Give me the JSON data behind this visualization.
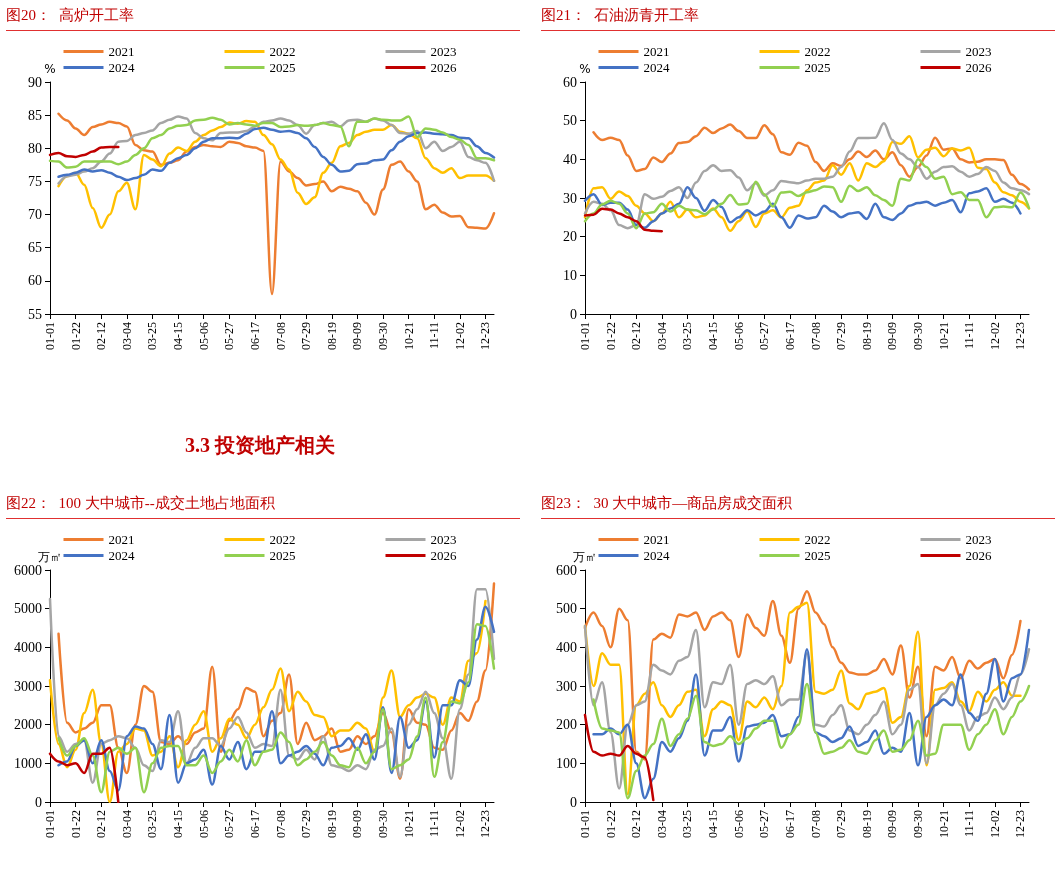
{
  "chart_data": [
    {
      "type": "line",
      "title": "图20：  高炉开工率",
      "ylabel": "%",
      "legend": "top",
      "marker": "none",
      "categories": [
        "01-01",
        null,
        null,
        "01-22",
        null,
        null,
        "02-12",
        null,
        null,
        "03-04",
        null,
        null,
        "03-25",
        null,
        null,
        "04-15",
        null,
        null,
        "05-06",
        null,
        null,
        "05-27",
        null,
        null,
        "06-17",
        null,
        null,
        "07-08",
        null,
        null,
        "07-29",
        null,
        null,
        "08-19",
        null,
        null,
        "09-09",
        null,
        null,
        "09-30",
        null,
        null,
        "10-21",
        null,
        null,
        "11-11",
        null,
        null,
        "12-02",
        null,
        null,
        "12-23",
        null
      ],
      "ylim": [
        55,
        90
      ],
      "yticks": [
        55,
        60,
        65,
        70,
        75,
        80,
        85,
        90
      ],
      "series": [
        {
          "name": "2021",
          "color": "#ed7d31",
          "values": [
            null,
            85.2,
            84.2,
            83,
            82,
            83.2,
            83.6,
            84,
            83.8,
            83.3,
            80.5,
            79.7,
            79.5,
            77.5,
            77.8,
            78.2,
            79.5,
            80.2,
            80.5,
            80.3,
            80.2,
            81,
            80.8,
            80.3,
            80.1,
            79.6,
            58,
            78,
            76.5,
            75.5,
            74.4,
            74.6,
            75,
            73.5,
            74.2,
            73.9,
            73.5,
            71.8,
            70,
            73.8,
            77.5,
            78,
            76.5,
            75,
            70.8,
            71.5,
            70.3,
            69.7,
            69.8,
            68.1,
            68,
            67.9,
            70.2
          ]
        },
        {
          "name": "2022",
          "color": "#ffc000",
          "values": [
            null,
            74.3,
            75.8,
            76.3,
            74.5,
            71,
            68,
            70,
            73.5,
            74.8,
            70.8,
            79,
            78.3,
            77.3,
            79.2,
            80.1,
            79.6,
            81,
            82,
            82.7,
            83.2,
            83.9,
            83.7,
            84.1,
            84,
            82,
            80.6,
            78.3,
            76.8,
            73.3,
            71.6,
            72.6,
            76.3,
            77.8,
            80.3,
            80.8,
            82,
            82.5,
            82.8,
            82.8,
            83.5,
            82.5,
            82.2,
            81.5,
            78.5,
            77,
            76.3,
            77,
            75.5,
            75.9,
            75.9,
            75.9,
            75.1
          ]
        },
        {
          "name": "2023",
          "color": "#a5a5a5",
          "values": [
            null,
            74.7,
            75.8,
            76,
            76.5,
            77,
            78,
            79.2,
            81,
            81.1,
            82,
            82.3,
            82.7,
            83.8,
            84.3,
            84.8,
            84.5,
            82.3,
            81.5,
            81.2,
            82.3,
            82.4,
            82.4,
            82.6,
            83.3,
            84,
            84.2,
            84.5,
            84.2,
            83.5,
            82.2,
            83.5,
            83.8,
            84,
            83.3,
            84.2,
            84.3,
            84,
            84.5,
            84.2,
            83.5,
            82.3,
            82.2,
            82.6,
            80,
            81,
            79.6,
            80.2,
            81,
            78.7,
            78.2,
            77.8,
            75.1
          ]
        },
        {
          "name": "2024",
          "color": "#4472c4",
          "values": [
            null,
            75.7,
            76,
            76.3,
            76.8,
            76.5,
            76.7,
            76.3,
            75.7,
            75.2,
            75.5,
            76,
            76.8,
            76.6,
            77.8,
            78.5,
            79,
            80,
            81,
            81.5,
            81.5,
            81.6,
            81.5,
            82.2,
            82.9,
            83.1,
            82.8,
            82.5,
            82.6,
            82.3,
            81.5,
            80.2,
            78.7,
            77.5,
            76.5,
            76.6,
            77.6,
            77.7,
            78.2,
            78.3,
            79.7,
            81,
            81.8,
            82.3,
            82.4,
            82.2,
            82.1,
            82,
            81.6,
            81.5,
            80.3,
            79.3,
            78.6
          ]
        },
        {
          "name": "2025",
          "color": "#92d050",
          "values": [
            78.1,
            78,
            77.1,
            77.2,
            78,
            78,
            78,
            78,
            77.6,
            78,
            79,
            80,
            81.5,
            82,
            83,
            83.4,
            83.5,
            84.2,
            84.3,
            84.6,
            84.3,
            83.6,
            83.8,
            83.6,
            83.4,
            83.8,
            83.8,
            83.2,
            83.3,
            83.5,
            83.4,
            83.5,
            83.8,
            83.5,
            83.3,
            80.3,
            84,
            84,
            84.5,
            84.3,
            84.2,
            84.2,
            84.8,
            81.7,
            83,
            82.8,
            82.4,
            81.7,
            81.3,
            80.5,
            78.5,
            78.5,
            78.2
          ]
        },
        {
          "name": "2026",
          "color": "#c00000",
          "values": [
            79,
            79.3,
            78.8,
            78.7,
            79,
            79.5,
            80.1,
            80.2,
            80.2,
            null,
            null,
            null,
            null,
            null,
            null,
            null,
            null,
            null,
            null,
            null,
            null,
            null,
            null,
            null,
            null,
            null,
            null,
            null,
            null,
            null,
            null,
            null,
            null,
            null,
            null,
            null,
            null,
            null,
            null,
            null,
            null,
            null,
            null,
            null,
            null,
            null,
            null,
            null,
            null,
            null,
            null,
            null,
            null
          ]
        }
      ]
    },
    {
      "type": "line",
      "title": "图21：  石油沥青开工率",
      "ylabel": "%",
      "legend": "top",
      "marker": "none",
      "categories": [
        "01-01",
        null,
        null,
        "01-22",
        null,
        null,
        "02-12",
        null,
        null,
        "03-04",
        null,
        null,
        "03-25",
        null,
        null,
        "04-15",
        null,
        null,
        "05-06",
        null,
        null,
        "05-27",
        null,
        null,
        "06-17",
        null,
        null,
        "07-08",
        null,
        null,
        "07-29",
        null,
        null,
        "08-19",
        null,
        null,
        "09-09",
        null,
        null,
        "09-30",
        null,
        null,
        "10-21",
        null,
        null,
        "11-11",
        null,
        null,
        "12-02",
        null,
        null,
        "12-23",
        null
      ],
      "ylim": [
        0,
        60
      ],
      "yticks": [
        0,
        10,
        20,
        30,
        40,
        50,
        60
      ],
      "series": [
        {
          "name": "2021",
          "color": "#ed7d31",
          "values": [
            null,
            47,
            45,
            45.6,
            45,
            41,
            37,
            37.5,
            40.5,
            39.3,
            41.5,
            44.2,
            44.5,
            46,
            48.2,
            46.8,
            48,
            49,
            47.3,
            45.5,
            45.5,
            48.8,
            46.5,
            41.8,
            41.2,
            44.3,
            43.5,
            39.3,
            37,
            39,
            38.3,
            40,
            42,
            40.6,
            42.3,
            40,
            41.8,
            38.5,
            35.5,
            38,
            41,
            45.6,
            42.5,
            42.8,
            40,
            39.2,
            39.4,
            40,
            40,
            39.8,
            36,
            33.6,
            32.2
          ]
        },
        {
          "name": "2022",
          "color": "#ffc000",
          "values": [
            25,
            32.5,
            32.8,
            29.8,
            31.7,
            30.5,
            28,
            26,
            24,
            26,
            29,
            25,
            27,
            25,
            25.5,
            27.3,
            25,
            21.5,
            24,
            26.5,
            22.5,
            26,
            26.8,
            25,
            27.5,
            28,
            32,
            34,
            34.5,
            38.5,
            36,
            39,
            34.5,
            39,
            38,
            39.5,
            44.5,
            44,
            46,
            40.5,
            42.5,
            43,
            40.8,
            42.8,
            42.3,
            43,
            37.8,
            37.5,
            34,
            31.5,
            30.7,
            29,
            27.3
          ]
        },
        {
          "name": "2023",
          "color": "#a5a5a5",
          "values": [
            26,
            29,
            28.5,
            26.8,
            23,
            22.2,
            23,
            31,
            29.8,
            30.3,
            31.8,
            32.8,
            30,
            34,
            37,
            38.5,
            37,
            37.2,
            35.3,
            32,
            33.8,
            30.6,
            32,
            34.4,
            34.1,
            33.8,
            34.5,
            35,
            35,
            35.5,
            38,
            42,
            45.5,
            45.5,
            45.6,
            49.3,
            45,
            41.5,
            40,
            38,
            35,
            36.8,
            38,
            38.2,
            36.8,
            35.5,
            36.2,
            38,
            37,
            34,
            32.5,
            32,
            31
          ]
        },
        {
          "name": "2024",
          "color": "#4472c4",
          "values": [
            29.3,
            31,
            28.2,
            28.8,
            28.8,
            27,
            23,
            22.3,
            24,
            26,
            27.3,
            28.5,
            32.8,
            30,
            26.7,
            29.5,
            27.7,
            23.7,
            25,
            26.8,
            25.5,
            26.5,
            28.5,
            25,
            22.3,
            25.5,
            24.7,
            25,
            28,
            26.5,
            25,
            26,
            26.3,
            24.6,
            28.5,
            25,
            24.3,
            26,
            28,
            28.7,
            29,
            28,
            28.8,
            29.5,
            26.3,
            31.2,
            31.7,
            32.5,
            29,
            29.8,
            28.8,
            26,
            null
          ]
        },
        {
          "name": "2025",
          "color": "#92d050",
          "values": [
            24,
            26,
            28.3,
            29.3,
            28.5,
            26,
            22.2,
            26,
            26.3,
            28.5,
            26.5,
            28,
            27,
            26.8,
            25.8,
            27,
            28.5,
            30.8,
            28.3,
            28.5,
            34.2,
            31,
            27.8,
            31.4,
            31.6,
            30.5,
            31.5,
            32,
            33,
            32.8,
            29,
            33.2,
            31.8,
            32.8,
            30.7,
            29.5,
            28,
            35,
            34.5,
            40,
            38,
            35,
            35.5,
            31,
            31.5,
            29.5,
            29.5,
            25,
            27.6,
            27.8,
            27.6,
            31.4,
            27.4
          ]
        },
        {
          "name": "2026",
          "color": "#c00000",
          "values": [
            25.5,
            25.7,
            27.2,
            27,
            26,
            25,
            24,
            21.8,
            21.5,
            21.4,
            null,
            null,
            null,
            null,
            null,
            null,
            null,
            null,
            null,
            null,
            null,
            null,
            null,
            null,
            null,
            null,
            null,
            null,
            null,
            null,
            null,
            null,
            null,
            null,
            null,
            null,
            null,
            null,
            null,
            null,
            null,
            null,
            null,
            null,
            null,
            null,
            null,
            null,
            null,
            null,
            null,
            null,
            null
          ]
        }
      ]
    },
    {
      "type": "line",
      "title": "图22：  100 大中城市--成交土地占地面积",
      "subtitle": "3.3 投资地产相关",
      "ylabel": "万㎡",
      "legend": "top",
      "marker": "none",
      "categories": [
        "01-01",
        null,
        null,
        "01-22",
        null,
        null,
        "02-12",
        null,
        null,
        "03-04",
        null,
        null,
        "03-25",
        null,
        null,
        "04-15",
        null,
        null,
        "05-06",
        null,
        null,
        "05-27",
        null,
        null,
        "06-17",
        null,
        null,
        "07-08",
        null,
        null,
        "07-29",
        null,
        null,
        "08-19",
        null,
        null,
        "09-09",
        null,
        null,
        "09-30",
        null,
        null,
        "10-21",
        null,
        null,
        "11-11",
        null,
        null,
        "12-02",
        null,
        null,
        "12-23",
        null
      ],
      "ylim": [
        0,
        6000
      ],
      "yticks": [
        0,
        1000,
        2000,
        3000,
        4000,
        5000,
        6000
      ],
      "series": [
        {
          "name": "2021",
          "color": "#ed7d31",
          "values": [
            null,
            4350,
            2050,
            1800,
            1900,
            2050,
            2500,
            2500,
            1400,
            750,
            2000,
            3000,
            2850,
            1550,
            1500,
            1700,
            1500,
            1800,
            1900,
            3500,
            1300,
            2100,
            2400,
            2950,
            2850,
            1700,
            2100,
            2300,
            3300,
            1500,
            2050,
            1600,
            1700,
            1900,
            1300,
            1350,
            1700,
            1500,
            1700,
            2300,
            1800,
            600,
            2400,
            2050,
            2000,
            1400,
            1350,
            1850,
            2300,
            2100,
            2600,
            3400,
            5650
          ]
        },
        {
          "name": "2022",
          "color": "#ffc000",
          "values": [
            3150,
            1500,
            900,
            1350,
            2300,
            2900,
            1500,
            0,
            1300,
            1500,
            1900,
            1850,
            1200,
            1300,
            1700,
            900,
            1600,
            2000,
            2350,
            1300,
            1650,
            2150,
            2000,
            1650,
            2000,
            2450,
            2900,
            3450,
            2350,
            2850,
            2600,
            2250,
            2200,
            1700,
            1850,
            1850,
            2050,
            1900,
            1300,
            2700,
            3400,
            2200,
            2500,
            2700,
            2800,
            2700,
            2000,
            2700,
            2600,
            3650,
            3850,
            5200,
            null
          ]
        },
        {
          "name": "2023",
          "color": "#a5a5a5",
          "values": [
            5250,
            1700,
            1300,
            1500,
            1600,
            500,
            1500,
            1600,
            1700,
            1650,
            1400,
            950,
            800,
            1600,
            1550,
            2350,
            1000,
            1400,
            1650,
            1650,
            1450,
            1900,
            2200,
            1800,
            1400,
            1500,
            1450,
            2900,
            1200,
            1100,
            1350,
            1100,
            1700,
            950,
            900,
            800,
            950,
            850,
            1350,
            1450,
            1900,
            650,
            2000,
            2400,
            2850,
            2300,
            1650,
            600,
            2400,
            3300,
            5500,
            5500,
            3700
          ]
        },
        {
          "name": "2024",
          "color": "#4472c4",
          "values": [
            null,
            950,
            1050,
            1450,
            1600,
            1000,
            1600,
            800,
            300,
            1700,
            1950,
            1900,
            1500,
            850,
            2250,
            500,
            1000,
            1100,
            1350,
            450,
            1450,
            1100,
            1550,
            850,
            1300,
            1300,
            2350,
            1000,
            1200,
            1300,
            1450,
            1250,
            950,
            1400,
            1450,
            1650,
            1350,
            1750,
            1100,
            2450,
            750,
            2200,
            1400,
            1600,
            2600,
            1150,
            2500,
            2500,
            3150,
            3000,
            4200,
            5050,
            4400
          ]
        },
        {
          "name": "2025",
          "color": "#92d050",
          "values": [
            null,
            1650,
            1200,
            1450,
            1650,
            1200,
            250,
            1300,
            1400,
            1250,
            1400,
            250,
            1000,
            1400,
            1450,
            1450,
            950,
            950,
            1200,
            750,
            1050,
            1350,
            1050,
            1600,
            950,
            1300,
            1350,
            1800,
            1550,
            950,
            1100,
            1300,
            1550,
            1200,
            950,
            900,
            1400,
            1000,
            1300,
            2400,
            850,
            950,
            1100,
            1700,
            2700,
            650,
            1550,
            2600,
            2550,
            3100,
            4600,
            4550,
            3450
          ]
        },
        {
          "name": "2026",
          "color": "#c00000",
          "values": [
            1250,
            1050,
            950,
            1000,
            750,
            1250,
            1250,
            1400,
            0,
            null,
            null,
            null,
            null,
            null,
            null,
            null,
            null,
            null,
            null,
            null,
            null,
            null,
            null,
            null,
            null,
            null,
            null,
            null,
            null,
            null,
            null,
            null,
            null,
            null,
            null,
            null,
            null,
            null,
            null,
            null,
            null,
            null,
            null,
            null,
            null,
            null,
            null,
            null,
            null,
            null,
            null,
            null,
            null
          ]
        }
      ]
    },
    {
      "type": "line",
      "title": "图23：  30 大中城市—商品房成交面积",
      "ylabel": "万㎡",
      "legend": "top",
      "marker": "none",
      "categories": [
        "01-01",
        null,
        null,
        "01-22",
        null,
        null,
        "02-12",
        null,
        null,
        "03-04",
        null,
        null,
        "03-25",
        null,
        null,
        "04-15",
        null,
        null,
        "05-06",
        null,
        null,
        "05-27",
        null,
        null,
        "06-17",
        null,
        null,
        "07-08",
        null,
        null,
        "07-29",
        null,
        null,
        "08-19",
        null,
        null,
        "09-09",
        null,
        null,
        "09-30",
        null,
        null,
        "10-21",
        null,
        null,
        "11-11",
        null,
        null,
        "12-02",
        null,
        null,
        "12-23",
        null
      ],
      "ylim": [
        0,
        600
      ],
      "yticks": [
        0,
        100,
        200,
        300,
        400,
        500,
        600
      ],
      "series": [
        {
          "name": "2021",
          "color": "#ed7d31",
          "values": [
            450,
            490,
            455,
            400,
            500,
            470,
            130,
            110,
            420,
            435,
            425,
            485,
            480,
            490,
            445,
            480,
            490,
            470,
            375,
            485,
            450,
            430,
            520,
            430,
            360,
            500,
            545,
            490,
            460,
            400,
            360,
            335,
            330,
            330,
            340,
            370,
            330,
            405,
            270,
            350,
            170,
            350,
            340,
            375,
            320,
            365,
            345,
            360,
            370,
            320,
            380,
            468,
            null
          ]
        },
        {
          "name": "2022",
          "color": "#ffc000",
          "values": [
            455,
            300,
            385,
            355,
            355,
            20,
            250,
            280,
            310,
            250,
            220,
            250,
            285,
            290,
            170,
            240,
            260,
            250,
            160,
            260,
            245,
            270,
            240,
            300,
            490,
            505,
            515,
            285,
            280,
            290,
            340,
            255,
            240,
            280,
            285,
            295,
            205,
            220,
            300,
            440,
            95,
            290,
            295,
            310,
            260,
            235,
            285,
            260,
            290,
            310,
            275,
            275,
            null
          ]
        },
        {
          "name": "2023",
          "color": "#a5a5a5",
          "values": [
            455,
            250,
            310,
            180,
            35,
            200,
            250,
            260,
            355,
            340,
            330,
            365,
            375,
            445,
            245,
            310,
            305,
            355,
            200,
            305,
            315,
            305,
            325,
            250,
            265,
            265,
            385,
            200,
            195,
            225,
            250,
            185,
            175,
            200,
            225,
            260,
            175,
            200,
            290,
            305,
            100,
            250,
            280,
            305,
            250,
            185,
            220,
            230,
            270,
            240,
            270,
            330,
            395
          ]
        },
        {
          "name": "2024",
          "color": "#4472c4",
          "values": [
            null,
            175,
            175,
            190,
            175,
            200,
            100,
            10,
            60,
            155,
            130,
            165,
            210,
            330,
            120,
            185,
            185,
            220,
            105,
            195,
            200,
            205,
            225,
            170,
            175,
            220,
            395,
            180,
            170,
            155,
            165,
            195,
            145,
            155,
            185,
            125,
            140,
            130,
            230,
            95,
            220,
            250,
            265,
            250,
            330,
            230,
            210,
            280,
            370,
            260,
            320,
            330,
            445
          ]
        },
        {
          "name": "2025",
          "color": "#92d050",
          "values": [
            null,
            265,
            190,
            185,
            180,
            10,
            80,
            120,
            150,
            215,
            145,
            175,
            215,
            275,
            155,
            145,
            150,
            170,
            150,
            165,
            190,
            210,
            210,
            140,
            175,
            200,
            305,
            180,
            125,
            130,
            140,
            160,
            130,
            125,
            160,
            185,
            130,
            135,
            160,
            210,
            120,
            125,
            200,
            200,
            200,
            135,
            175,
            200,
            240,
            175,
            220,
            260,
            300
          ]
        },
        {
          "name": "2026",
          "color": "#c00000",
          "values": [
            225,
            130,
            120,
            125,
            120,
            145,
            125,
            115,
            5,
            null,
            null,
            null,
            null,
            null,
            null,
            null,
            null,
            null,
            null,
            null,
            null,
            null,
            null,
            null,
            null,
            null,
            null,
            null,
            null,
            null,
            null,
            null,
            null,
            null,
            null,
            null,
            null,
            null,
            null,
            null,
            null,
            null,
            null,
            null,
            null,
            null,
            null,
            null,
            null,
            null,
            null,
            null,
            null
          ]
        }
      ]
    }
  ]
}
